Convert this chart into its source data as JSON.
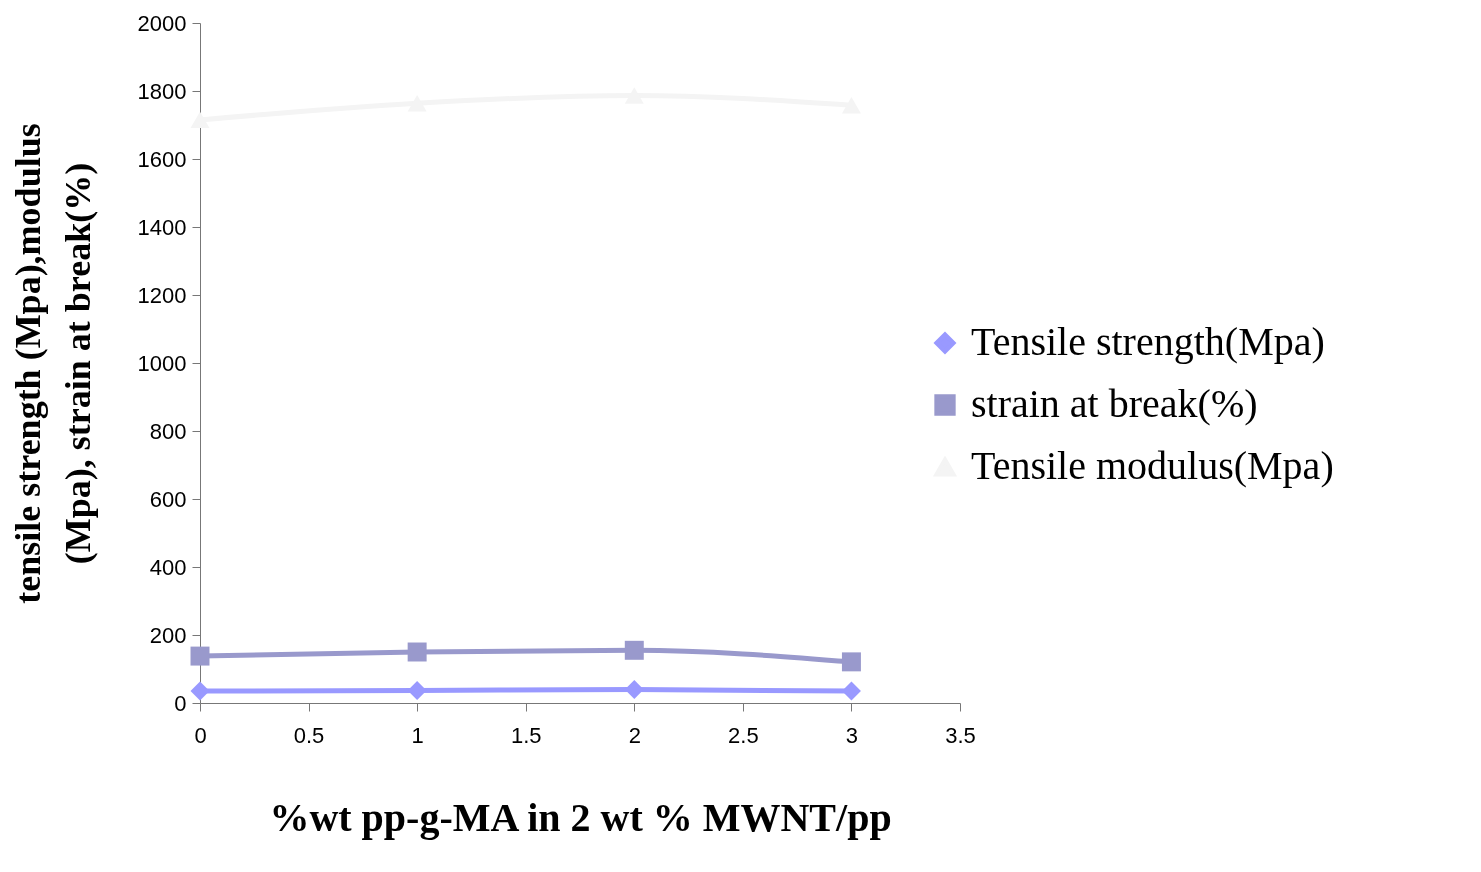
{
  "chart_data": {
    "type": "line",
    "xlabel": "%wt pp-g-MA in 2 wt % MWNT/pp",
    "ylabel": "tensile strength (Mpa),modulus\n(Mpa), strain at break(%)",
    "x": [
      0,
      1,
      2,
      3
    ],
    "series": [
      {
        "name": "Tensile strength(Mpa)",
        "color": "#9999ff",
        "marker": "diamond",
        "values": [
          35,
          37,
          40,
          35
        ]
      },
      {
        "name": "strain at break(%)",
        "color": "#9999cc",
        "marker": "square",
        "values": [
          138,
          150,
          155,
          121
        ]
      },
      {
        "name": "Tensile modulus(Mpa)",
        "color": "#f4f4f4",
        "marker": "triangle",
        "values": [
          1715,
          1764,
          1787,
          1758
        ]
      }
    ],
    "xlim": [
      0,
      3.5
    ],
    "xticks": [
      0,
      0.5,
      1,
      1.5,
      2,
      2.5,
      3,
      3.5
    ],
    "ylim": [
      0,
      2000
    ],
    "yticks": [
      0,
      200,
      400,
      600,
      800,
      1000,
      1200,
      1400,
      1600,
      1800,
      2000
    ],
    "grid": false,
    "legend": "right",
    "line_style": "solid"
  }
}
